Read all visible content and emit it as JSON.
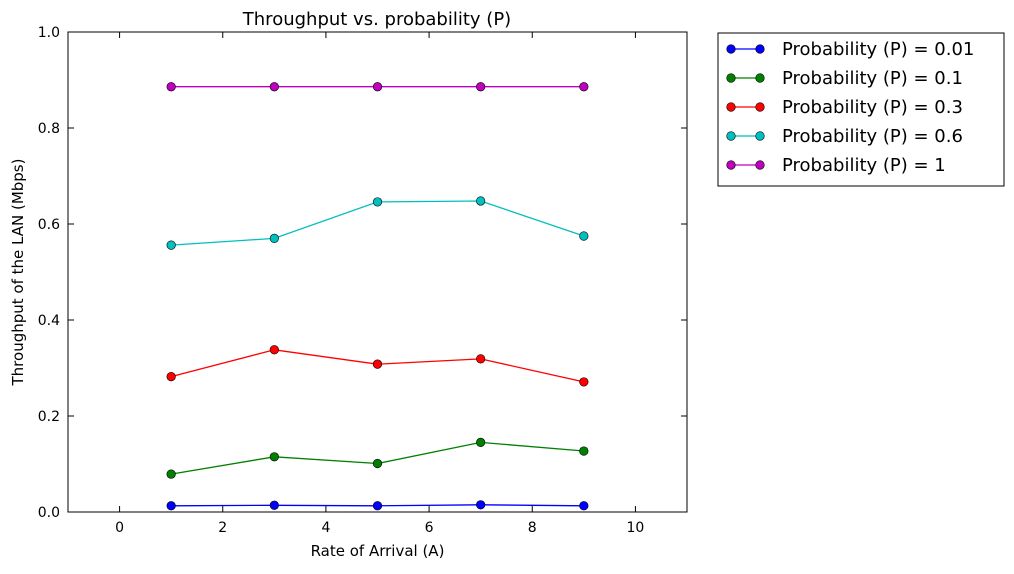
{
  "chart_data": {
    "type": "line",
    "title": "Throughput vs. probability (P)",
    "xlabel": "Rate of Arrival (A)",
    "ylabel": "Throughput of the LAN (Mbps)",
    "xlim": [
      -1,
      11
    ],
    "ylim": [
      0,
      1.0
    ],
    "xticks": [
      0,
      2,
      4,
      6,
      8,
      10
    ],
    "xtick_labels": [
      "0",
      "2",
      "4",
      "6",
      "8",
      "10"
    ],
    "yticks": [
      0,
      0.2,
      0.4,
      0.6,
      0.8,
      1.0
    ],
    "ytick_labels": [
      "0.0",
      "0.2",
      "0.4",
      "0.6",
      "0.8",
      "1.0"
    ],
    "grid": false,
    "legend_position": "outside-top-right",
    "x": [
      1,
      3,
      5,
      7,
      9
    ],
    "series": [
      {
        "name": "Probability (P) = 0.01",
        "color": "#0000ff",
        "values": [
          0.013,
          0.014,
          0.013,
          0.015,
          0.013
        ]
      },
      {
        "name": "Probability (P) = 0.1",
        "color": "#008000",
        "values": [
          0.079,
          0.115,
          0.101,
          0.145,
          0.127
        ]
      },
      {
        "name": "Probability (P) = 0.3",
        "color": "#ff0000",
        "values": [
          0.282,
          0.338,
          0.308,
          0.319,
          0.271
        ]
      },
      {
        "name": "Probability (P) = 0.6",
        "color": "#00bfbf",
        "values": [
          0.556,
          0.57,
          0.646,
          0.648,
          0.575
        ]
      },
      {
        "name": "Probability (P) = 1",
        "color": "#bf00bf",
        "values": [
          0.886,
          0.886,
          0.886,
          0.886,
          0.886
        ]
      }
    ]
  }
}
